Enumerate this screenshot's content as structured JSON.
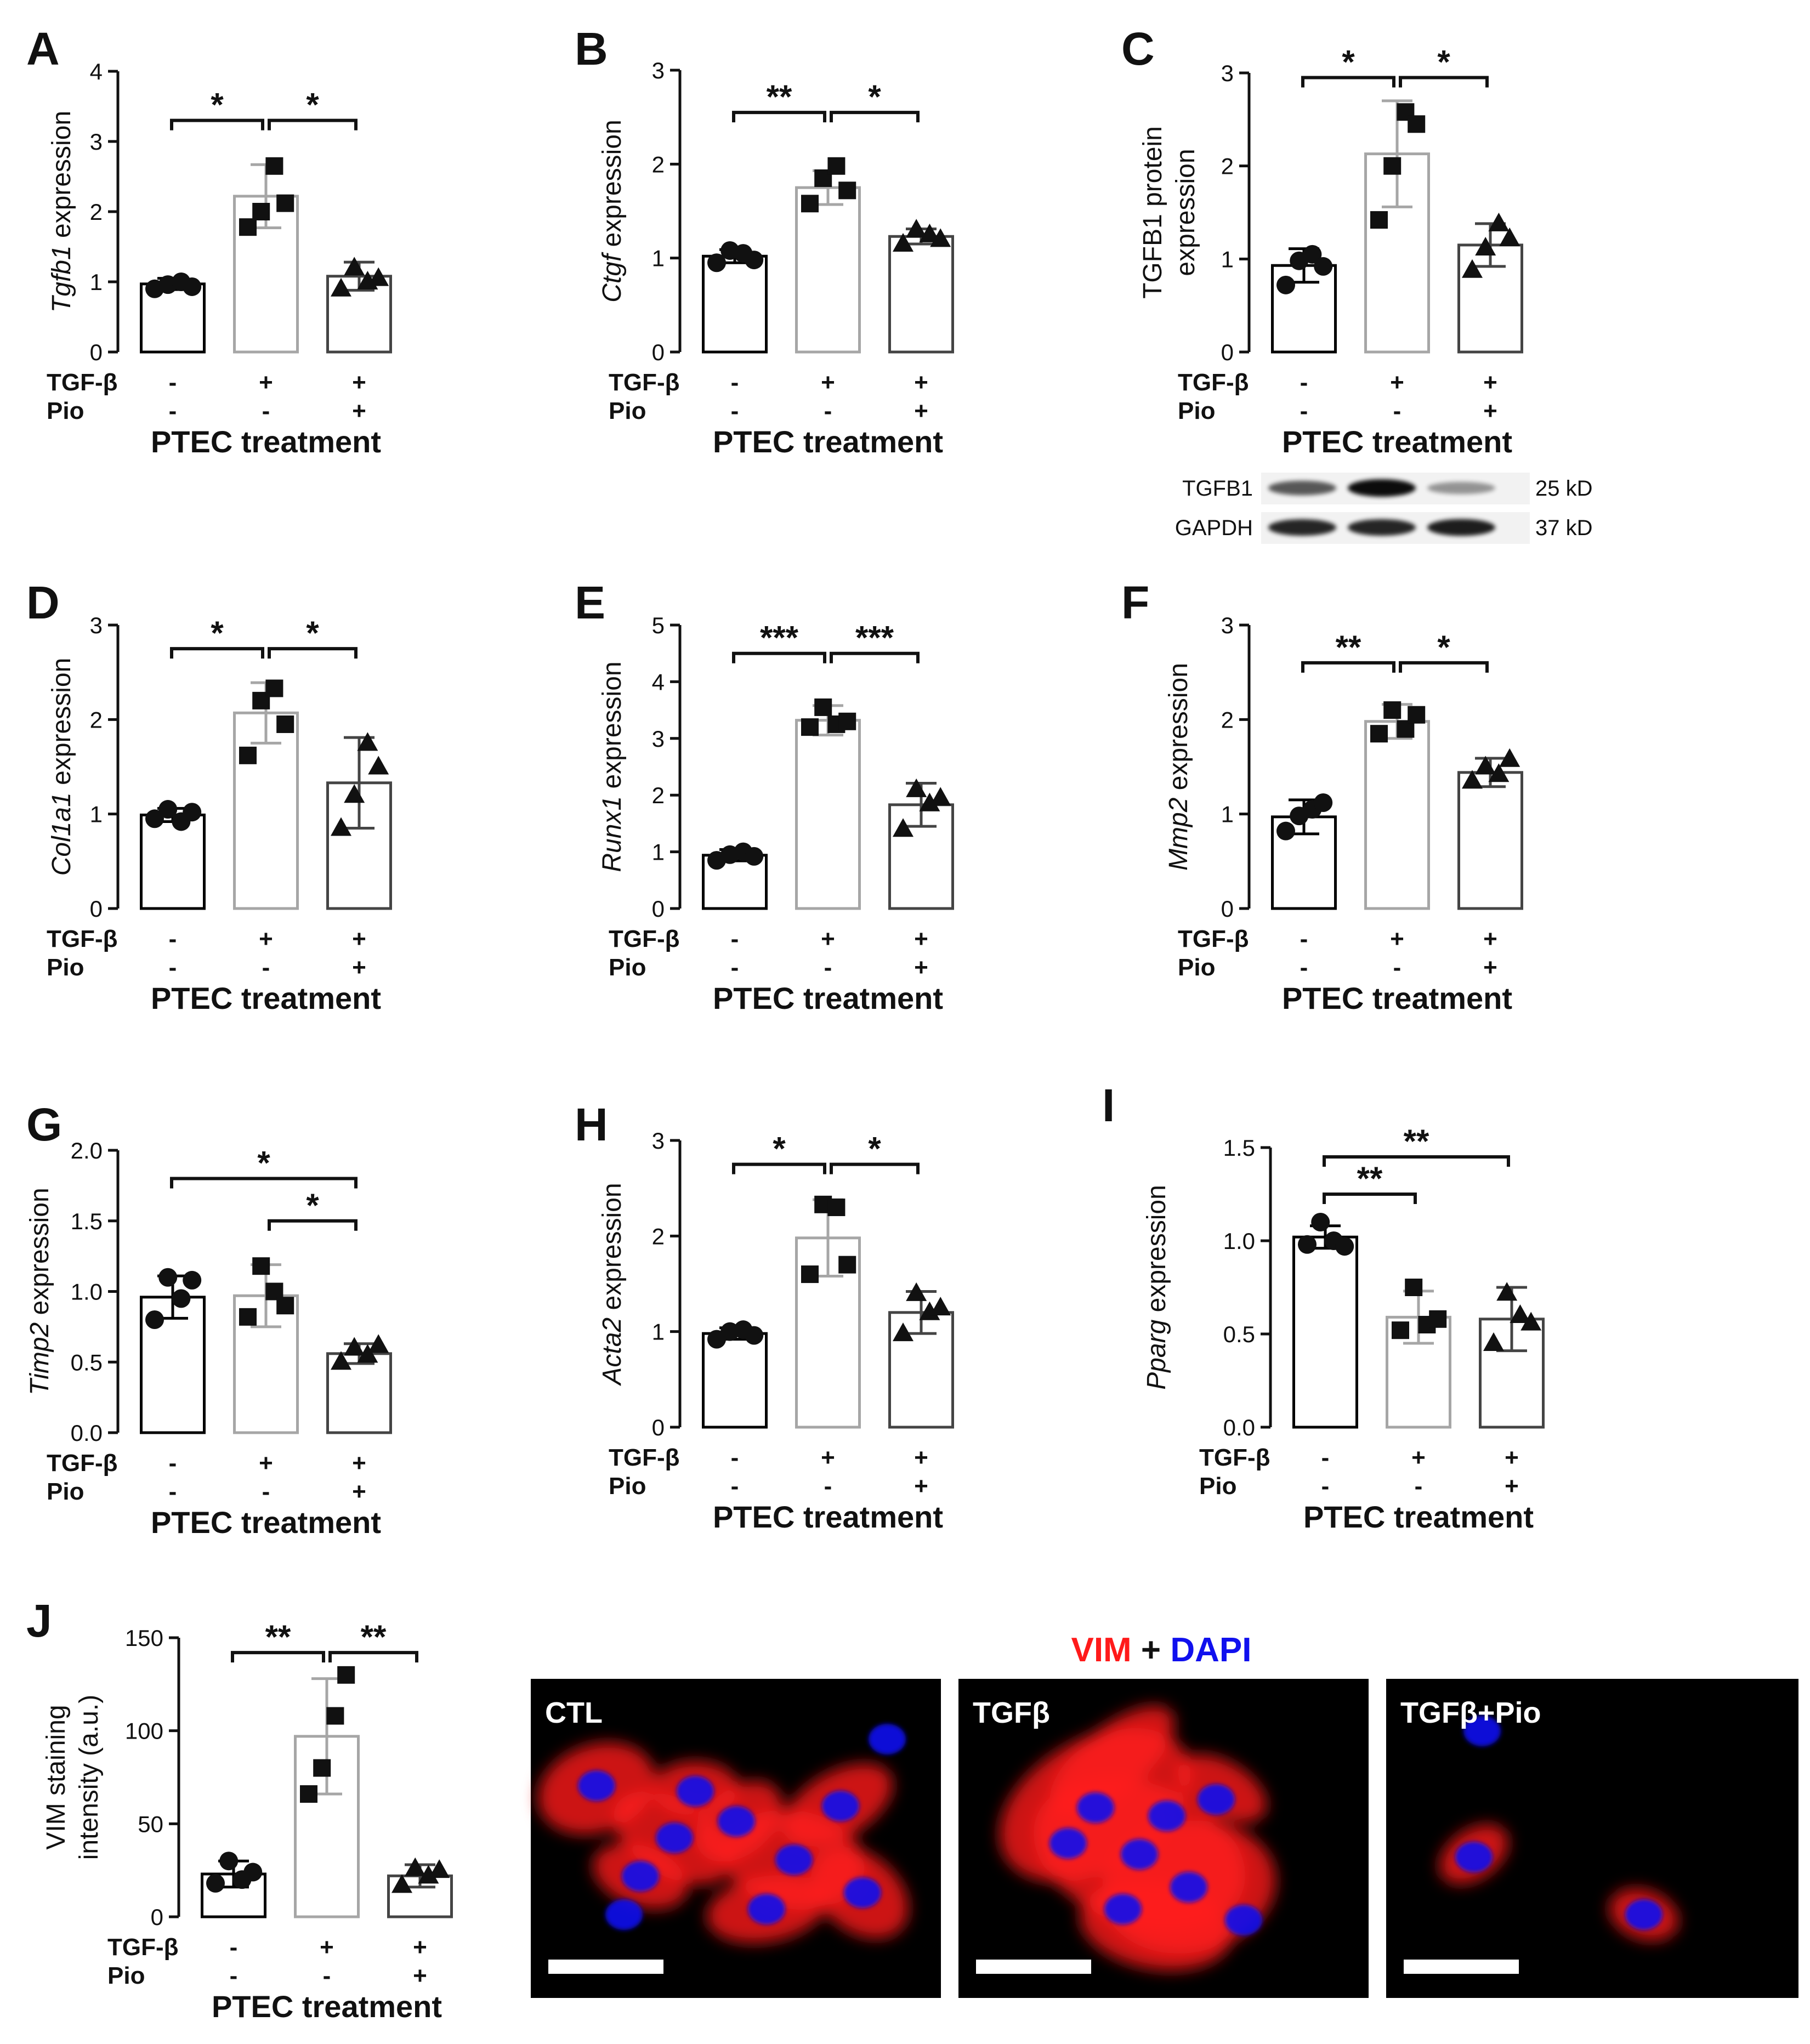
{
  "x_axis_label": "PTEC treatment",
  "condition_rows": [
    {
      "label": "TGF-β",
      "values": [
        "-",
        "+",
        "+"
      ]
    },
    {
      "label": "Pio",
      "values": [
        "-",
        "-",
        "+"
      ]
    }
  ],
  "colors": {
    "bar_ctl": "#000000",
    "bar_tgfb": "#a6a6a6",
    "bar_pio": "#444444",
    "vim_red": "#ff1a1a",
    "dapi_blue": "#1010ee",
    "plus_black": "#111111"
  },
  "chart_data": [
    {
      "type": "bar",
      "panel": "A",
      "ylabel_italic": "Tgfb1",
      "ylabel_rest": " expression",
      "ylim": [
        0,
        4
      ],
      "yticks": [
        "0",
        "1",
        "2",
        "3",
        "4"
      ],
      "categories": [
        "CTL",
        "TGF-β",
        "TGF-β+Pio"
      ],
      "values": [
        0.97,
        2.22,
        1.08
      ],
      "sd": [
        0.08,
        0.45,
        0.2
      ],
      "points": [
        [
          0.9,
          0.96,
          1.0,
          0.93
        ],
        [
          1.78,
          2.0,
          2.65,
          2.12
        ],
        [
          0.9,
          1.2,
          1.0,
          1.05
        ]
      ],
      "markers": [
        "circle",
        "square",
        "triangle"
      ],
      "significance": [
        {
          "from": 0,
          "to": 1,
          "label": "*",
          "y": 3.3
        },
        {
          "from": 1,
          "to": 2,
          "label": "*",
          "y": 3.3
        }
      ]
    },
    {
      "type": "bar",
      "panel": "B",
      "ylabel_italic": "Ctgf",
      "ylabel_rest": " expression",
      "ylim": [
        0,
        3
      ],
      "yticks": [
        "0",
        "1",
        "2",
        "3"
      ],
      "categories": [
        "CTL",
        "TGF-β",
        "TGF-β+Pio"
      ],
      "values": [
        1.02,
        1.75,
        1.23
      ],
      "sd": [
        0.07,
        0.18,
        0.08
      ],
      "points": [
        [
          0.95,
          1.08,
          1.05,
          0.98
        ],
        [
          1.58,
          1.85,
          1.98,
          1.72
        ],
        [
          1.15,
          1.3,
          1.25,
          1.2
        ]
      ],
      "markers": [
        "circle",
        "square",
        "triangle"
      ],
      "significance": [
        {
          "from": 0,
          "to": 1,
          "label": "**",
          "y": 2.55
        },
        {
          "from": 1,
          "to": 2,
          "label": "*",
          "y": 2.55
        }
      ]
    },
    {
      "type": "bar",
      "panel": "C",
      "ylabel_lines": [
        "TGFB1 protein",
        "expression"
      ],
      "ylim": [
        0,
        3
      ],
      "yticks": [
        "0",
        "1",
        "2",
        "3"
      ],
      "categories": [
        "CTL",
        "TGF-β",
        "TGF-β+Pio"
      ],
      "values": [
        0.93,
        2.13,
        1.15
      ],
      "sd": [
        0.18,
        0.57,
        0.23
      ],
      "points": [
        [
          0.72,
          0.98,
          1.05,
          0.92
        ],
        [
          1.42,
          2.0,
          2.58,
          2.45
        ],
        [
          0.88,
          1.12,
          1.38,
          1.22
        ]
      ],
      "markers": [
        "circle",
        "square",
        "triangle"
      ],
      "significance": [
        {
          "from": 0,
          "to": 1,
          "label": "*",
          "y": 2.95
        },
        {
          "from": 1,
          "to": 2,
          "label": "*",
          "y": 2.95
        }
      ],
      "western_blot": {
        "rows": [
          {
            "label": "TGFB1",
            "size": "25 kD",
            "intensity": [
              0.55,
              1.0,
              0.2
            ]
          },
          {
            "label": "GAPDH",
            "size": "37 kD",
            "intensity": [
              0.85,
              0.85,
              0.9
            ]
          }
        ]
      }
    },
    {
      "type": "bar",
      "panel": "D",
      "ylabel_italic": "Col1a1",
      "ylabel_rest": " expression",
      "ylim": [
        0,
        3
      ],
      "yticks": [
        "0",
        "1",
        "2",
        "3"
      ],
      "categories": [
        "CTL",
        "TGF-β",
        "TGF-β+Pio"
      ],
      "values": [
        0.99,
        2.07,
        1.33
      ],
      "sd": [
        0.07,
        0.32,
        0.48
      ],
      "points": [
        [
          0.95,
          1.05,
          0.92,
          1.02
        ],
        [
          1.62,
          2.2,
          2.33,
          1.95
        ],
        [
          0.85,
          1.2,
          1.75,
          1.5
        ]
      ],
      "markers": [
        "circle",
        "square",
        "triangle"
      ],
      "significance": [
        {
          "from": 0,
          "to": 1,
          "label": "*",
          "y": 2.75
        },
        {
          "from": 1,
          "to": 2,
          "label": "*",
          "y": 2.75
        }
      ]
    },
    {
      "type": "bar",
      "panel": "E",
      "ylabel_italic": "Runx1",
      "ylabel_rest": " expression",
      "ylim": [
        0,
        5
      ],
      "yticks": [
        "0",
        "1",
        "2",
        "3",
        "4",
        "5"
      ],
      "categories": [
        "CTL",
        "TGF-β",
        "TGF-β+Pio"
      ],
      "values": [
        0.94,
        3.32,
        1.83
      ],
      "sd": [
        0.1,
        0.26,
        0.38
      ],
      "points": [
        [
          0.85,
          0.95,
          1.0,
          0.92
        ],
        [
          3.2,
          3.55,
          3.25,
          3.3
        ],
        [
          1.4,
          2.1,
          1.85,
          1.95
        ]
      ],
      "markers": [
        "circle",
        "square",
        "triangle"
      ],
      "significance": [
        {
          "from": 0,
          "to": 1,
          "label": "***",
          "y": 4.5
        },
        {
          "from": 1,
          "to": 2,
          "label": "***",
          "y": 4.5
        }
      ]
    },
    {
      "type": "bar",
      "panel": "F",
      "ylabel_italic": "Mmp2",
      "ylabel_rest": " expression",
      "ylim": [
        0,
        3
      ],
      "yticks": [
        "0",
        "1",
        "2",
        "3"
      ],
      "categories": [
        "CTL",
        "TGF-β",
        "TGF-β+Pio"
      ],
      "values": [
        0.97,
        1.98,
        1.44
      ],
      "sd": [
        0.18,
        0.18,
        0.15
      ],
      "points": [
        [
          0.82,
          0.98,
          1.05,
          1.12
        ],
        [
          1.85,
          2.1,
          1.9,
          2.05
        ],
        [
          1.35,
          1.5,
          1.42,
          1.58
        ]
      ],
      "markers": [
        "circle",
        "square",
        "triangle"
      ],
      "significance": [
        {
          "from": 0,
          "to": 1,
          "label": "**",
          "y": 2.6
        },
        {
          "from": 1,
          "to": 2,
          "label": "*",
          "y": 2.6
        }
      ]
    },
    {
      "type": "bar",
      "panel": "G",
      "ylabel_italic": "Timp2",
      "ylabel_rest": " expression",
      "ylim": [
        0,
        2
      ],
      "yticks": [
        "0.0",
        "0.5",
        "1.0",
        "1.5",
        "2.0"
      ],
      "categories": [
        "CTL",
        "TGF-β",
        "TGF-β+Pio"
      ],
      "values": [
        0.96,
        0.97,
        0.56
      ],
      "sd": [
        0.15,
        0.22,
        0.07
      ],
      "points": [
        [
          0.8,
          1.1,
          0.95,
          1.08
        ],
        [
          0.82,
          1.18,
          1.0,
          0.9
        ],
        [
          0.5,
          0.6,
          0.55,
          0.62
        ]
      ],
      "markers": [
        "circle",
        "square",
        "triangle"
      ],
      "significance": [
        {
          "from": 0,
          "to": 2,
          "label": "*",
          "y": 1.8
        },
        {
          "from": 1,
          "to": 2,
          "label": "*",
          "y": 1.5
        }
      ]
    },
    {
      "type": "bar",
      "panel": "H",
      "ylabel_italic": "Acta2",
      "ylabel_rest": " expression",
      "ylim": [
        0,
        3
      ],
      "yticks": [
        "0",
        "1",
        "2",
        "3"
      ],
      "categories": [
        "CTL",
        "TGF-β",
        "TGF-β+Pio"
      ],
      "values": [
        0.98,
        1.98,
        1.2
      ],
      "sd": [
        0.06,
        0.4,
        0.22
      ],
      "points": [
        [
          0.92,
          1.0,
          1.02,
          0.96
        ],
        [
          1.6,
          2.33,
          2.3,
          1.7
        ],
        [
          0.98,
          1.4,
          1.2,
          1.25
        ]
      ],
      "markers": [
        "circle",
        "square",
        "triangle"
      ],
      "significance": [
        {
          "from": 0,
          "to": 1,
          "label": "*",
          "y": 2.75
        },
        {
          "from": 1,
          "to": 2,
          "label": "*",
          "y": 2.75
        }
      ]
    },
    {
      "type": "bar",
      "panel": "I",
      "ylabel_italic": "Pparg",
      "ylabel_rest": " expression",
      "ylim": [
        0,
        1.5
      ],
      "yticks": [
        "0.0",
        "0.5",
        "1.0",
        "1.5"
      ],
      "categories": [
        "CTL",
        "TGF-β",
        "TGF-β+Pio"
      ],
      "values": [
        1.02,
        0.59,
        0.58
      ],
      "sd": [
        0.06,
        0.14,
        0.17
      ],
      "points": [
        [
          0.98,
          1.1,
          1.0,
          0.97
        ],
        [
          0.52,
          0.75,
          0.55,
          0.58
        ],
        [
          0.45,
          0.72,
          0.6,
          0.56
        ]
      ],
      "markers": [
        "circle",
        "square",
        "triangle"
      ],
      "significance": [
        {
          "from": 0,
          "to": 1,
          "label": "**",
          "y": 1.25
        },
        {
          "from": 0,
          "to": 2,
          "label": "**",
          "y": 1.45
        }
      ]
    },
    {
      "type": "bar",
      "panel": "J",
      "ylabel_lines": [
        "VIM staining",
        "intensity (a.u.)"
      ],
      "ylim": [
        0,
        150
      ],
      "yticks": [
        "0",
        "50",
        "100",
        "150"
      ],
      "categories": [
        "CTL",
        "TGF-β",
        "TGF-β+Pio"
      ],
      "values": [
        23,
        97,
        22
      ],
      "sd": [
        7,
        31,
        6
      ],
      "points": [
        [
          18,
          30,
          20,
          24
        ],
        [
          66,
          80,
          108,
          130
        ],
        [
          17,
          26,
          22,
          25
        ]
      ],
      "markers": [
        "circle",
        "square",
        "triangle"
      ],
      "significance": [
        {
          "from": 0,
          "to": 1,
          "label": "**",
          "y": 142
        },
        {
          "from": 1,
          "to": 2,
          "label": "**",
          "y": 142
        }
      ]
    }
  ],
  "microscopy": {
    "title_vim": "VIM",
    "title_plus": " + ",
    "title_dapi": "DAPI",
    "panels": [
      "CTL",
      "TGFβ",
      "TGFβ+Pio"
    ]
  }
}
